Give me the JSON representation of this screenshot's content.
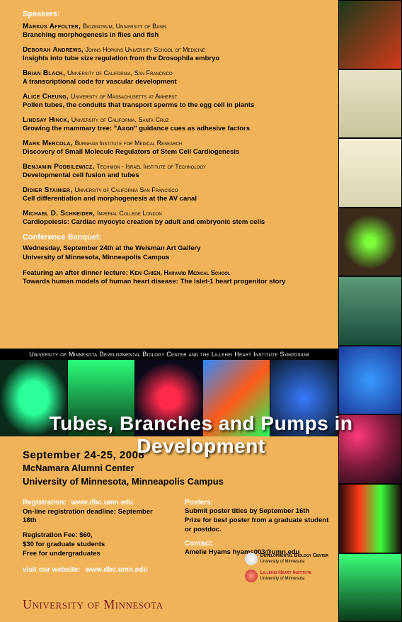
{
  "colors": {
    "bg": "#f0b35a",
    "black": "#000000",
    "white": "#ffffff",
    "maroon": "#7a1a1a",
    "lillehei": "#c02020"
  },
  "speakers_heading": "Speakers:",
  "speakers": [
    {
      "name": "Markus Affolter,",
      "affil": "Biozentrum, University of Basel",
      "talk": "Branching morphogenesis in flies and fish"
    },
    {
      "name": "Deborah Andrews,",
      "affil": "Johns Hopkins University School of Medicine",
      "talk": "Insights into tube size regulation from the Drosophila embryo"
    },
    {
      "name": "Brian Black,",
      "affil": "University of California, San Francisco",
      "talk": "A transcriptional code for vascular development"
    },
    {
      "name": "Alice Cheung,",
      "affil": "University of Massachusetts at Amherst",
      "talk": "Pollen tubes, the conduits that transport sperms to the egg cell in plants"
    },
    {
      "name": "Lindsay Hinck,",
      "affil": "University of California, Santa Cruz",
      "talk": "Growing the mammary tree: \"Axon\" guidance cues as adhesive factors"
    },
    {
      "name": "Mark Mercola,",
      "affil": "Burnham Institute for Medical Research",
      "talk": "Discovery of Small Molecule Regulators of Stem Cell Cardiogenesis"
    },
    {
      "name": "Benjamin Podbilewicz,",
      "affil": "Technion - Israel Institute of Technology",
      "talk": "Developmental cell fusion and tubes"
    },
    {
      "name": "Didier Stainier,",
      "affil": "University of California San Francisco",
      "talk": "Cell differentiation and morphogenesis at the AV canal"
    },
    {
      "name": "Michael D. Schneider,",
      "affil": "Imperial College London",
      "talk": "Cardiopoiesis: Cardiac myocyte creation by adult and embryonic stem cells"
    }
  ],
  "banquet": {
    "heading": "Conference Banquet:",
    "line1": "Wednesday, September 24th at the Weisman Art Gallery",
    "line2": "University of Minnesota, Minneapolis Campus",
    "feature_pre": "Featuring an after dinner lecture: ",
    "feature_name": "Ken Chien,",
    "feature_affil": " Harvard Medical School",
    "feature_talk": "Towards human models of human heart disease: The islet-1 heart progenitor story"
  },
  "banner": "University of Minnesota Developmental Biology Center and the Lillehei Heart Institute Symposium",
  "title": "Tubes, Branches and Pumps in Development",
  "event": {
    "dates": "September 24-25, 2008",
    "venue": "McNamara Alumni Center",
    "campus": "University of Minnesota, Minneapolis Campus"
  },
  "registration": {
    "heading": "Registration:",
    "url": "www.dbc.umn.edu",
    "deadline": "On-line registration deadline: September 18th",
    "fee1": "Registration Fee: $60,",
    "fee2": "$30 for graduate students",
    "fee3": "Free for undergraduates"
  },
  "posters": {
    "heading": "Posters:",
    "line1": "Submit poster titles by September 16th",
    "line2": "Prize for best poster from a graduate student or postdoc.",
    "contact_h": "Contact:",
    "contact": "Amelie Hyams   hyams003@umn.edu"
  },
  "website": {
    "label": "visit our website:",
    "url": "www.dbc.umn.edu"
  },
  "uofm": "University of Minnesota",
  "logos": {
    "dbc": "Developmental Biology Center",
    "dbc2": "University of Minnesota",
    "lhi": "Lillehei Heart Institute",
    "lhi2": "University of Minnesota"
  },
  "sidebar_colors": [
    "linear-gradient(135deg,#1a3a1a,#d43a1a)",
    "linear-gradient(#e8e4c8,#c8c49a)",
    "linear-gradient(#f5f0d5,#d8d4b0)",
    "radial-gradient(circle,#7aff3a 10%,#3a2a1a 60%)",
    "linear-gradient(#5a9a7a,#1a4a3a)",
    "radial-gradient(circle,#3a9aff,#1a3a9a)",
    "radial-gradient(circle at 30% 30%,#ff3a7a,#7a1a3a,#1a0a1a)",
    "linear-gradient(90deg,#2a0a0a,#ff3a1a,#3aff3a,#1a0a0a)",
    "linear-gradient(#3aff7a,#0a3a1a)"
  ],
  "band_colors": [
    "radial-gradient(ellipse,#2aff9a 30%,#0a2a1a 70%)",
    "linear-gradient(#2aff7a,#0a3a1a)",
    "radial-gradient(circle,#ff2a4a 20%,#0a0a1a 70%)",
    "linear-gradient(135deg,#2a8aff,#ff5a1a,#1aff5a)",
    "radial-gradient(circle,#3a7aff,#0a1a2a)"
  ]
}
